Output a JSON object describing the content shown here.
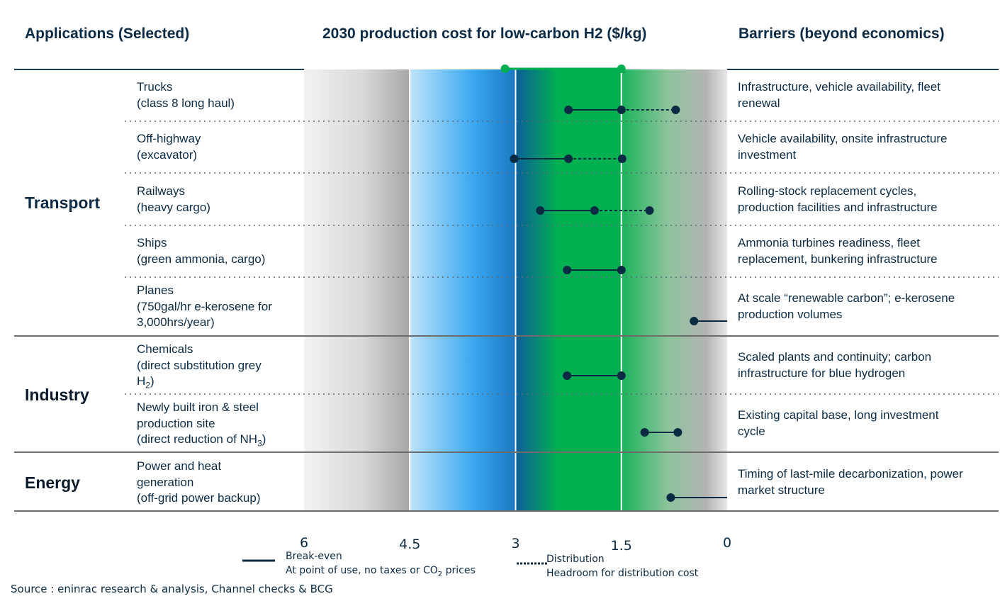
{
  "headers": {
    "applications": "Applications (Selected)",
    "cost": "2030 production cost for low-carbon H2 ($/kg)",
    "barriers": "Barriers (beyond economics)"
  },
  "sectors": {
    "transport": "Transport",
    "industry": "Industry",
    "energy": "Energy"
  },
  "rows": [
    {
      "sector": "Transport",
      "app_lines": [
        "Trucks",
        "(class 8 long haul)"
      ],
      "barriers": [
        "Infrastructure, vehicle availability, fleet",
        "renewal"
      ]
    },
    {
      "sector": "Transport",
      "app_lines": [
        "Off-highway",
        "(excavator)"
      ],
      "barriers": [
        "Vehicle availability, onsite infrastructure",
        "investment"
      ]
    },
    {
      "sector": "Transport",
      "app_lines": [
        "Railways",
        "(heavy cargo)"
      ],
      "barriers": [
        "Rolling-stock replacement cycles,",
        "production facilities and infrastructure"
      ]
    },
    {
      "sector": "Transport",
      "app_lines": [
        "Ships",
        "(green ammonia, cargo)"
      ],
      "barriers": [
        "Ammonia turbines readiness, fleet",
        "replacement, bunkering infrastructure"
      ]
    },
    {
      "sector": "Transport",
      "app_lines": [
        "Planes",
        "(750gal/hr e-kerosene for",
        "3,000hrs/year)"
      ],
      "barriers": [
        "At scale “renewable carbon”; e-kerosene",
        "production volumes"
      ]
    },
    {
      "sector": "Industry",
      "app_lines": [
        "Chemicals",
        "(direct substitution grey",
        "H"
      ],
      "app_sub": "2",
      "app_tail": ")",
      "barriers": [
        "Scaled plants and continuity; carbon",
        "infrastructure for blue hydrogen"
      ]
    },
    {
      "sector": "Industry",
      "app_lines": [
        "Newly built iron & steel",
        "production site",
        "(direct reduction of NH"
      ],
      "app_sub": "3",
      "app_tail": ")",
      "barriers": [
        "Existing capital base, long investment",
        "cycle"
      ]
    },
    {
      "sector": "Energy",
      "app_lines": [
        "Power and heat",
        "generation",
        "(off-grid power backup)"
      ],
      "barriers": [
        "Timing of last-mile decarbonization, power",
        "market structure"
      ]
    }
  ],
  "chart_data": {
    "type": "dumbbell",
    "title": "2030 production cost for low-carbon H2 ($/kg)",
    "x_axis": {
      "ticks": [
        "6",
        "4.5",
        "3",
        "1.5",
        "0"
      ],
      "tick_values": [
        6,
        4.5,
        3,
        1.5,
        0
      ],
      "reversed": true,
      "xlim": [
        6,
        0
      ]
    },
    "range_marker": [
      3.15,
      1.5
    ],
    "series": [
      {
        "name": "Break-even",
        "style": "solid"
      },
      {
        "name": "Distribution",
        "style": "dashed"
      }
    ],
    "points": [
      {
        "category": "Trucks",
        "break_even": [
          2.25,
          1.5
        ],
        "distribution": [
          1.5,
          0.73
        ]
      },
      {
        "category": "Off-highway",
        "break_even": [
          3.02,
          2.25
        ],
        "distribution": [
          2.25,
          1.49
        ]
      },
      {
        "category": "Railways",
        "break_even": [
          2.65,
          1.88
        ],
        "distribution": [
          1.88,
          1.1
        ]
      },
      {
        "category": "Ships",
        "break_even": [
          2.27,
          1.5
        ],
        "distribution": null
      },
      {
        "category": "Planes",
        "break_even": [
          0.47,
          0.0
        ],
        "distribution": null
      },
      {
        "category": "Chemicals",
        "break_even": [
          2.27,
          1.5
        ],
        "distribution": null
      },
      {
        "category": "Newly built iron & steel",
        "break_even": [
          1.17,
          0.7
        ],
        "distribution": null
      },
      {
        "category": "Power and heat generation",
        "break_even": [
          0.8,
          0.0
        ],
        "distribution": null
      }
    ],
    "colors": {
      "navy": "#0b2b45",
      "green": "#00b050",
      "blue": "#2196f3",
      "grey": "#b0b0b0"
    }
  },
  "legend": {
    "break_even_title": "Break-even",
    "break_even_desc_main": "At point of use, no taxes or CO",
    "break_even_desc_sub": "2",
    "break_even_desc_tail": " prices",
    "distribution_title": "Distribution",
    "distribution_desc": "Headroom for distribution cost"
  },
  "source": "Source : eninrac research & analysis, Channel checks & BCG"
}
